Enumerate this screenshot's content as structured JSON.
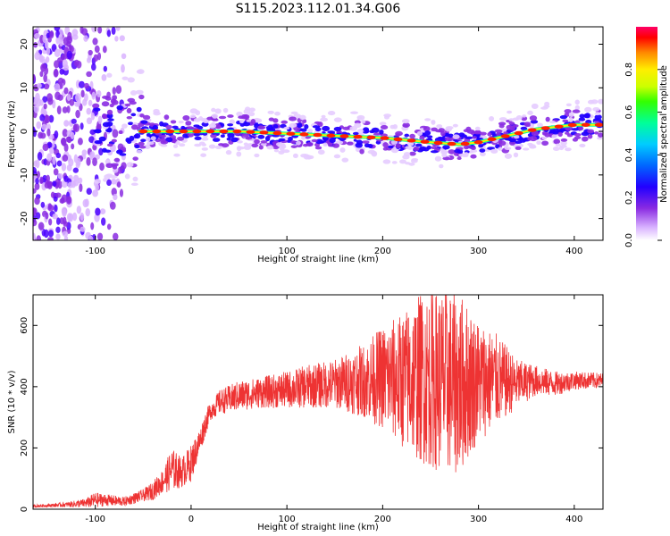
{
  "title": "S115.2023.112.01.34.G06",
  "chart_data": [
    {
      "type": "heatmap",
      "xlabel": "Height of straight line (km)",
      "ylabel": "Frequency (Hz)",
      "xlim": [
        -165,
        430
      ],
      "ylim": [
        -25,
        24
      ],
      "x_ticks": [
        -100,
        0,
        100,
        200,
        300,
        400
      ],
      "y_ticks": [
        -20,
        -10,
        0,
        10,
        20
      ],
      "grid": false,
      "ridge": {
        "description_points_x": [
          -50,
          -30,
          0,
          50,
          100,
          150,
          200,
          250,
          280,
          300,
          330,
          360,
          400,
          430
        ],
        "frequency_hz": [
          0,
          0,
          0,
          0,
          -0.5,
          -1,
          -1.5,
          -2.5,
          -3,
          -2.5,
          -1,
          0.5,
          1.5,
          1.5
        ]
      },
      "colorbar": {
        "label": "Normalized spectral amplitude",
        "range": [
          0,
          1
        ],
        "ticks": [
          "0.0",
          "0.2",
          "0.4",
          "0.6",
          "0.8"
        ],
        "colormap": [
          "#ffffff",
          "#d9b3ff",
          "#8a2be2",
          "#4b00ff",
          "#0000ff",
          "#00c8ff",
          "#00ff99",
          "#00ff00",
          "#aaff00",
          "#ffff00",
          "#ff9900",
          "#ff0000",
          "#ff0066"
        ]
      }
    },
    {
      "type": "line",
      "xlabel": "Height of straight line (km)",
      "ylabel": "SNR (10 * v/v)",
      "xlim": [
        -165,
        430
      ],
      "ylim": [
        0,
        700
      ],
      "x_ticks": [
        -100,
        0,
        100,
        200,
        300,
        400
      ],
      "y_ticks": [
        0,
        200,
        400,
        600
      ],
      "grid": false,
      "color": "#ee3333",
      "series": [
        {
          "x": [
            -165,
            -150,
            -130,
            -110,
            -100,
            -90,
            -70,
            -50,
            -40,
            -30,
            -20,
            -10,
            0,
            10,
            15,
            20,
            30,
            50,
            70,
            100,
            120,
            150,
            180,
            200,
            220,
            240,
            260,
            280,
            300,
            320,
            340,
            360,
            380,
            400,
            430
          ],
          "y": [
            10,
            12,
            15,
            20,
            30,
            30,
            25,
            45,
            60,
            90,
            130,
            120,
            150,
            230,
            280,
            320,
            350,
            370,
            380,
            390,
            400,
            410,
            420,
            430,
            420,
            430,
            420,
            410,
            420,
            420,
            410,
            420,
            410,
            420,
            420
          ],
          "spread": [
            5,
            5,
            8,
            15,
            25,
            20,
            15,
            20,
            30,
            40,
            70,
            50,
            60,
            40,
            40,
            30,
            40,
            50,
            50,
            60,
            70,
            80,
            120,
            170,
            220,
            280,
            300,
            300,
            200,
            150,
            80,
            50,
            40,
            30,
            25
          ]
        }
      ]
    }
  ]
}
